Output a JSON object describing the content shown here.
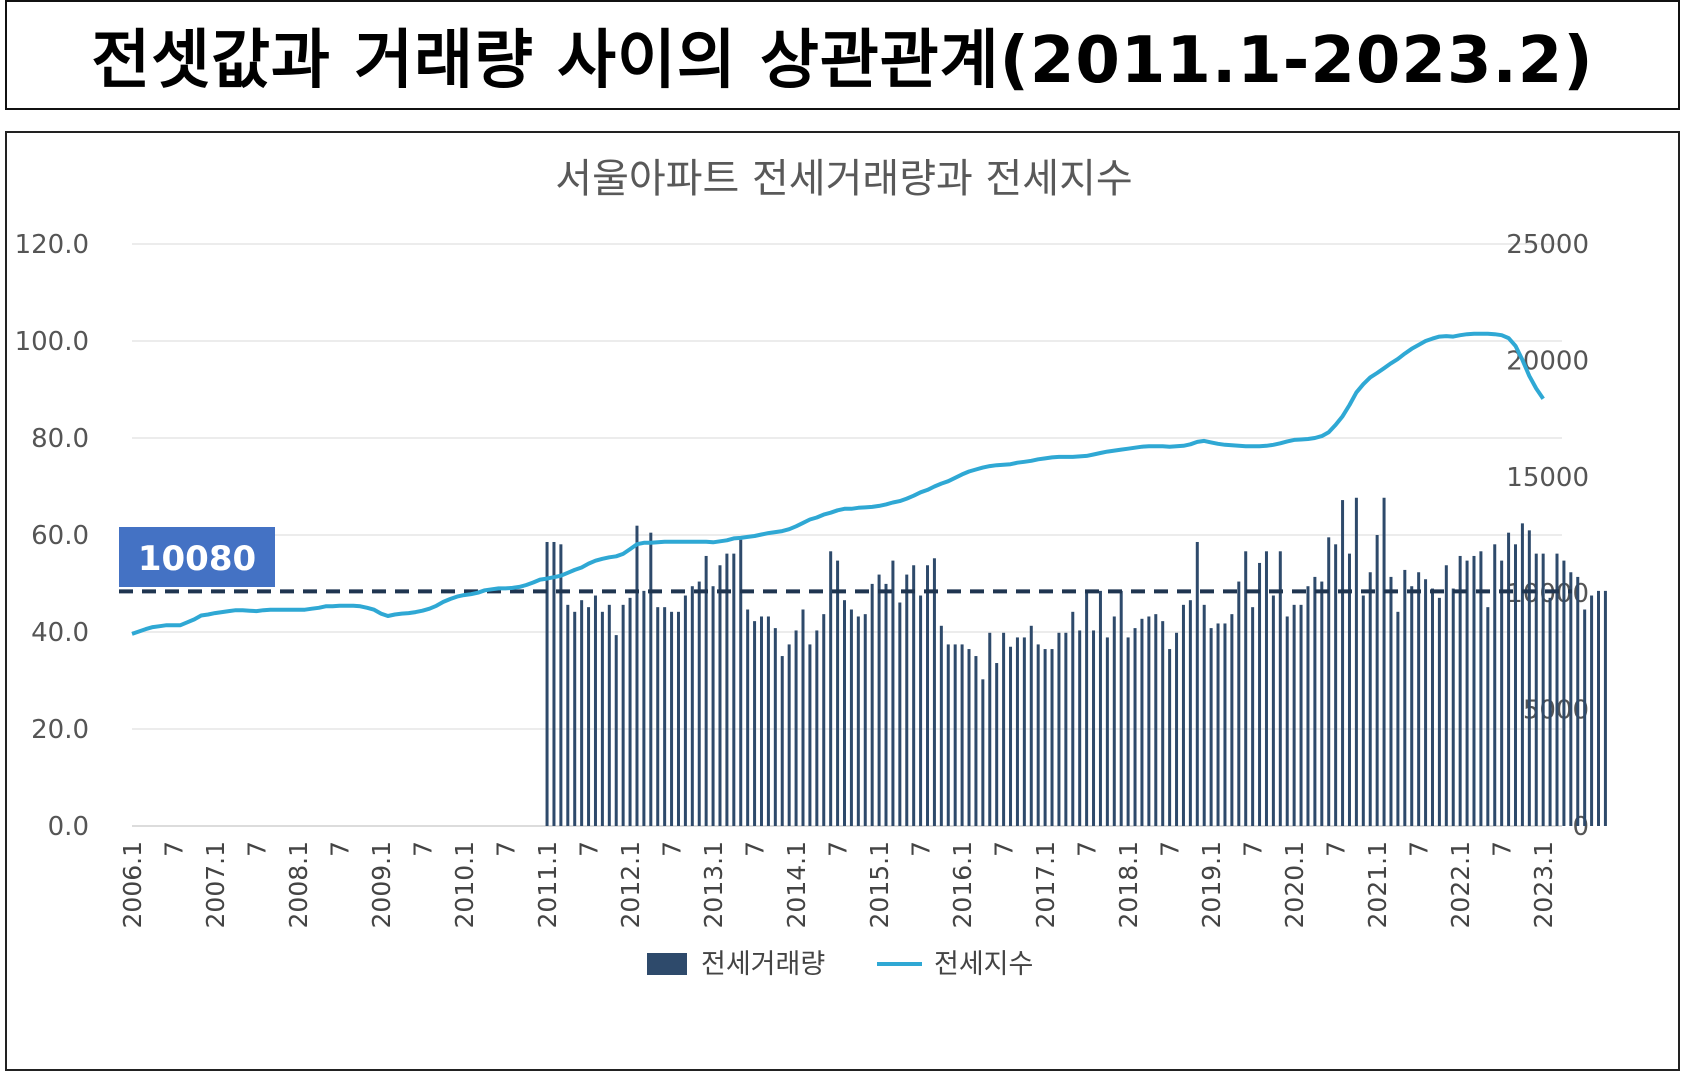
{
  "page_title": "전셋값과 거래량 사이의 상관관계(2011.1-2023.2)",
  "chart_data": {
    "type": "bar+line",
    "title": "서울아파트 전세거래량과 전세지수",
    "left_axis": {
      "min": 0,
      "max": 120,
      "ticks": [
        "0.0",
        "20.0",
        "40.0",
        "60.0",
        "80.0",
        "100.0",
        "120.0"
      ]
    },
    "right_axis": {
      "min": 0,
      "max": 25000,
      "ticks": [
        "0",
        "5000",
        "10000",
        "15000",
        "20000",
        "25000"
      ]
    },
    "x_labels": [
      "2006.1",
      "7",
      "2007.1",
      "7",
      "2008.1",
      "7",
      "2009.1",
      "7",
      "2010.1",
      "7",
      "2011.1",
      "7",
      "2012.1",
      "7",
      "2013.1",
      "7",
      "2014.1",
      "7",
      "2015.1",
      "7",
      "2016.1",
      "7",
      "2017.1",
      "7",
      "2018.1",
      "7",
      "2019.1",
      "7",
      "2020.1",
      "7",
      "2021.1",
      "7",
      "2022.1",
      "7",
      "2023.1"
    ],
    "grid": true,
    "legend_position": "bottom",
    "reference_line": {
      "value": 10080,
      "label": "10080",
      "axis": "right"
    },
    "series": [
      {
        "name": "전세거래량",
        "type": "bar",
        "axis": "right",
        "color": "#2e4a6b",
        "start": "2011.1",
        "values": [
          12200,
          12200,
          12100,
          9500,
          9200,
          9700,
          9400,
          9900,
          9200,
          9500,
          8200,
          9500,
          9800,
          12900,
          10100,
          12600,
          9400,
          9400,
          9200,
          9200,
          9900,
          10300,
          10500,
          11600,
          10300,
          11200,
          11700,
          11700,
          12300,
          9300,
          8800,
          9000,
          9000,
          8500,
          7300,
          7800,
          8400,
          9300,
          7800,
          8400,
          9100,
          11800,
          11400,
          9700,
          9300,
          9000,
          9100,
          10400,
          10800,
          10400,
          11400,
          9600,
          10800,
          11200,
          9900,
          11200,
          11500,
          8600,
          7800,
          7800,
          7800,
          7600,
          7300,
          6300,
          8300,
          7000,
          8300,
          7700,
          8100,
          8100,
          8600,
          7800,
          7600,
          7600,
          8300,
          8300,
          9200,
          8400,
          10100,
          8400,
          10100,
          8100,
          9000,
          10100,
          8100,
          8500,
          8900,
          9000,
          9100,
          8800,
          7600,
          8300,
          9500,
          9700,
          12200,
          9500,
          8500,
          8700,
          8700,
          9100,
          10500,
          11800,
          9400,
          11300,
          11800,
          9900,
          11800,
          9000,
          9500,
          9500,
          10300,
          10700,
          10500,
          12400,
          12100,
          14000,
          11700,
          14100,
          9900,
          10900,
          12500,
          14100,
          10700,
          9200,
          11000,
          10300,
          10900,
          10600,
          10200,
          9800,
          11200,
          10200,
          11600,
          11400,
          11600,
          11800,
          9400,
          12100,
          11400,
          12600,
          12100,
          13000,
          12700,
          11700,
          11700,
          9800,
          11700,
          11400,
          10900,
          10700,
          9300,
          9900,
          10100,
          10100
        ]
      },
      {
        "name": "전세지수",
        "type": "line",
        "axis": "left",
        "color": "#2fa8d4",
        "start": "2006.1",
        "values": [
          39.6,
          40.1,
          40.6,
          41.0,
          41.2,
          41.4,
          41.4,
          41.4,
          42.0,
          42.6,
          43.4,
          43.6,
          43.9,
          44.1,
          44.3,
          44.5,
          44.5,
          44.4,
          44.3,
          44.5,
          44.6,
          44.6,
          44.6,
          44.6,
          44.6,
          44.6,
          44.8,
          45.0,
          45.3,
          45.3,
          45.4,
          45.4,
          45.4,
          45.3,
          45.0,
          44.6,
          43.8,
          43.3,
          43.6,
          43.8,
          43.9,
          44.1,
          44.4,
          44.8,
          45.4,
          46.2,
          46.8,
          47.3,
          47.6,
          47.8,
          48.1,
          48.6,
          48.8,
          49.0,
          49.0,
          49.1,
          49.3,
          49.7,
          50.2,
          50.8,
          51.0,
          51.3,
          51.6,
          52.2,
          52.8,
          53.3,
          54.1,
          54.7,
          55.1,
          55.4,
          55.6,
          56.1,
          57.1,
          58.1,
          58.4,
          58.4,
          58.5,
          58.6,
          58.6,
          58.6,
          58.6,
          58.6,
          58.6,
          58.6,
          58.5,
          58.7,
          58.9,
          59.3,
          59.4,
          59.6,
          59.8,
          60.1,
          60.4,
          60.6,
          60.8,
          61.2,
          61.8,
          62.5,
          63.2,
          63.6,
          64.2,
          64.6,
          65.1,
          65.4,
          65.4,
          65.6,
          65.7,
          65.8,
          66.0,
          66.3,
          66.7,
          67.0,
          67.5,
          68.1,
          68.8,
          69.3,
          70.0,
          70.6,
          71.1,
          71.8,
          72.5,
          73.1,
          73.5,
          73.9,
          74.2,
          74.4,
          74.5,
          74.6,
          74.9,
          75.1,
          75.3,
          75.6,
          75.8,
          76.0,
          76.1,
          76.1,
          76.1,
          76.2,
          76.3,
          76.6,
          76.9,
          77.2,
          77.4,
          77.6,
          77.8,
          78.0,
          78.2,
          78.3,
          78.3,
          78.3,
          78.2,
          78.3,
          78.4,
          78.7,
          79.2,
          79.4,
          79.1,
          78.8,
          78.6,
          78.5,
          78.4,
          78.3,
          78.3,
          78.3,
          78.4,
          78.6,
          78.9,
          79.3,
          79.6,
          79.7,
          79.8,
          80.0,
          80.4,
          81.2,
          82.7,
          84.5,
          86.8,
          89.4,
          91.1,
          92.5,
          93.4,
          94.4,
          95.4,
          96.3,
          97.4,
          98.4,
          99.2,
          100.0,
          100.5,
          100.9,
          101.0,
          100.9,
          101.2,
          101.4,
          101.5,
          101.5,
          101.5,
          101.4,
          101.2,
          100.6,
          99.0,
          96.1,
          92.8,
          90.2,
          88.1
        ]
      }
    ]
  }
}
